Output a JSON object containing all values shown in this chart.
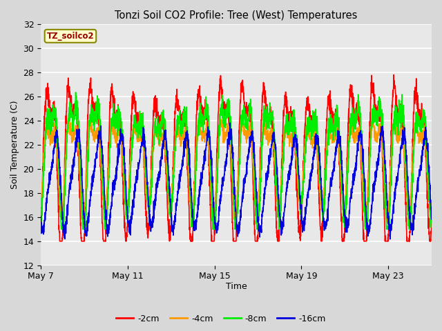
{
  "title": "Tonzi Soil CO2 Profile: Tree (West) Temperatures",
  "xlabel": "Time",
  "ylabel": "Soil Temperature (C)",
  "ylim": [
    12,
    32
  ],
  "yticks": [
    12,
    14,
    16,
    18,
    20,
    22,
    24,
    26,
    28,
    30,
    32
  ],
  "xtick_labels": [
    "May 7",
    "May 11",
    "May 15",
    "May 19",
    "May 23"
  ],
  "background_color": "#d8d8d8",
  "plot_bg_color": "#e8e8e8",
  "grid_color": "#ffffff",
  "legend_label": "TZ_soilco2",
  "legend_box_color": "#ffffcc",
  "legend_box_edge": "#888800",
  "series_colors": [
    "#ff0000",
    "#ff9900",
    "#00ee00",
    "#0000dd"
  ],
  "series_labels": [
    "-2cm",
    "-4cm",
    "-8cm",
    "-16cm"
  ],
  "n_days": 18,
  "start_day": 7
}
